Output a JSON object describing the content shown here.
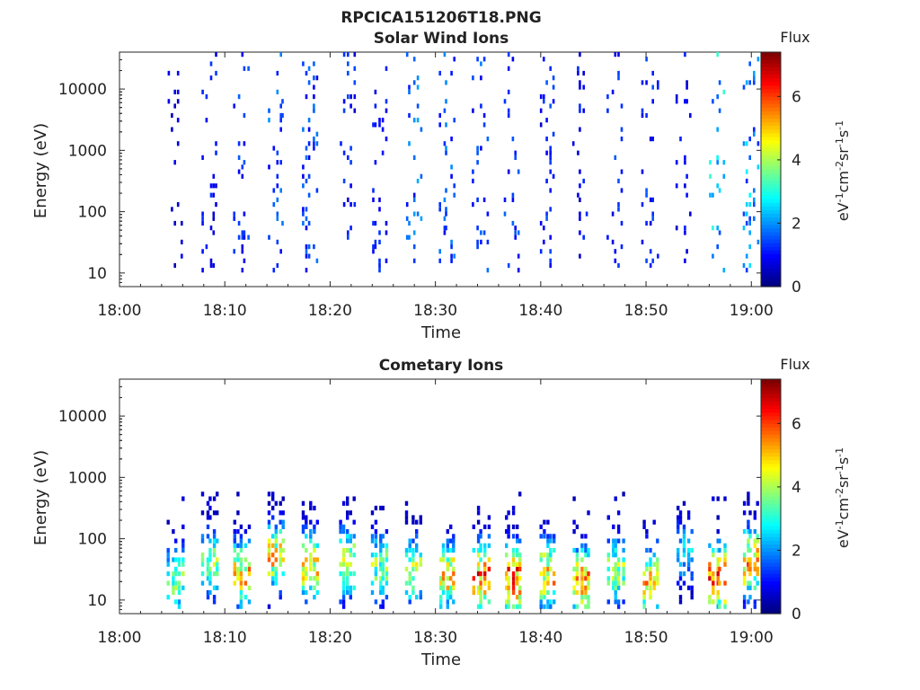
{
  "figure": {
    "filename": "RPCICA151206T18.PNG"
  },
  "colors": {
    "axis": "#262626"
  },
  "colorbar": {
    "label": "Flux",
    "unit_parts": [
      "eV",
      "-1",
      "cm",
      "-2",
      "sr",
      "-1",
      "s",
      "-1"
    ],
    "range": [
      0,
      7.4
    ],
    "ticks": [
      "0",
      "2",
      "4",
      "6"
    ],
    "tick_values": [
      0,
      2,
      4,
      6
    ],
    "colormap": "jet"
  },
  "chart_data": [
    {
      "type": "heatmap",
      "title": "Solar Wind Ions",
      "xlabel": "Time",
      "ylabel": "Energy (eV)",
      "yscale": "log",
      "ylim": [
        6,
        40000
      ],
      "xlim_minutes": [
        0,
        61
      ],
      "xticks": [
        "18:00",
        "18:10",
        "18:20",
        "18:30",
        "18:40",
        "18:50",
        "19:00"
      ],
      "xtick_minutes": [
        0,
        10,
        20,
        30,
        40,
        50,
        60
      ],
      "yticks": [
        "10",
        "100",
        "1000",
        "10000"
      ],
      "ytick_values": [
        10,
        100,
        1000,
        10000
      ],
      "scan_times": [
        "18:05",
        "18:08",
        "18:11",
        "18:14",
        "18:17",
        "18:21",
        "18:24",
        "18:27",
        "18:30",
        "18:34",
        "18:37",
        "18:40",
        "18:43",
        "18:47",
        "18:50",
        "18:53",
        "18:57",
        "19:00"
      ],
      "scan_minutes": [
        5.2,
        8.5,
        11.5,
        14.8,
        18.0,
        21.5,
        24.6,
        27.8,
        31.0,
        34.2,
        37.2,
        40.5,
        43.7,
        47.0,
        50.3,
        53.5,
        56.6,
        59.8
      ],
      "scan_peak_flux": [
        1.0,
        1.4,
        1.7,
        2.0,
        1.8,
        1.5,
        1.4,
        2.2,
        2.0,
        1.9,
        1.7,
        1.6,
        1.3,
        1.8,
        1.6,
        1.3,
        3.2,
        2.8
      ],
      "flux_dominant_range_eV": [
        10,
        40000
      ]
    },
    {
      "type": "heatmap",
      "title": "Cometary Ions",
      "xlabel": "Time",
      "ylabel": "Energy (eV)",
      "yscale": "log",
      "ylim": [
        6,
        40000
      ],
      "xlim_minutes": [
        0,
        61
      ],
      "xticks": [
        "18:00",
        "18:10",
        "18:20",
        "18:30",
        "18:40",
        "18:50",
        "19:00"
      ],
      "xtick_minutes": [
        0,
        10,
        20,
        30,
        40,
        50,
        60
      ],
      "yticks": [
        "10",
        "100",
        "1000",
        "10000"
      ],
      "ytick_values": [
        10,
        100,
        1000,
        10000
      ],
      "scan_times": [
        "18:05",
        "18:08",
        "18:11",
        "18:14",
        "18:17",
        "18:21",
        "18:24",
        "18:27",
        "18:30",
        "18:34",
        "18:37",
        "18:40",
        "18:43",
        "18:47",
        "18:50",
        "18:53",
        "18:57",
        "19:00"
      ],
      "scan_minutes": [
        5.2,
        8.5,
        11.5,
        14.8,
        18.0,
        21.5,
        24.6,
        27.8,
        31.0,
        34.2,
        37.2,
        40.5,
        43.7,
        47.0,
        50.3,
        53.5,
        56.6,
        59.8
      ],
      "scan_peak_flux": [
        4.0,
        4.2,
        5.6,
        5.4,
        5.3,
        5.0,
        4.2,
        4.6,
        5.6,
        6.5,
        6.8,
        5.8,
        6.0,
        4.4,
        5.6,
        2.8,
        6.6,
        5.8
      ],
      "scan_peak_energy_eV": [
        20,
        40,
        25,
        50,
        35,
        40,
        35,
        30,
        25,
        25,
        22,
        25,
        20,
        30,
        20,
        60,
        22,
        40
      ],
      "flux_dominant_range_eV": [
        7,
        600
      ]
    }
  ]
}
